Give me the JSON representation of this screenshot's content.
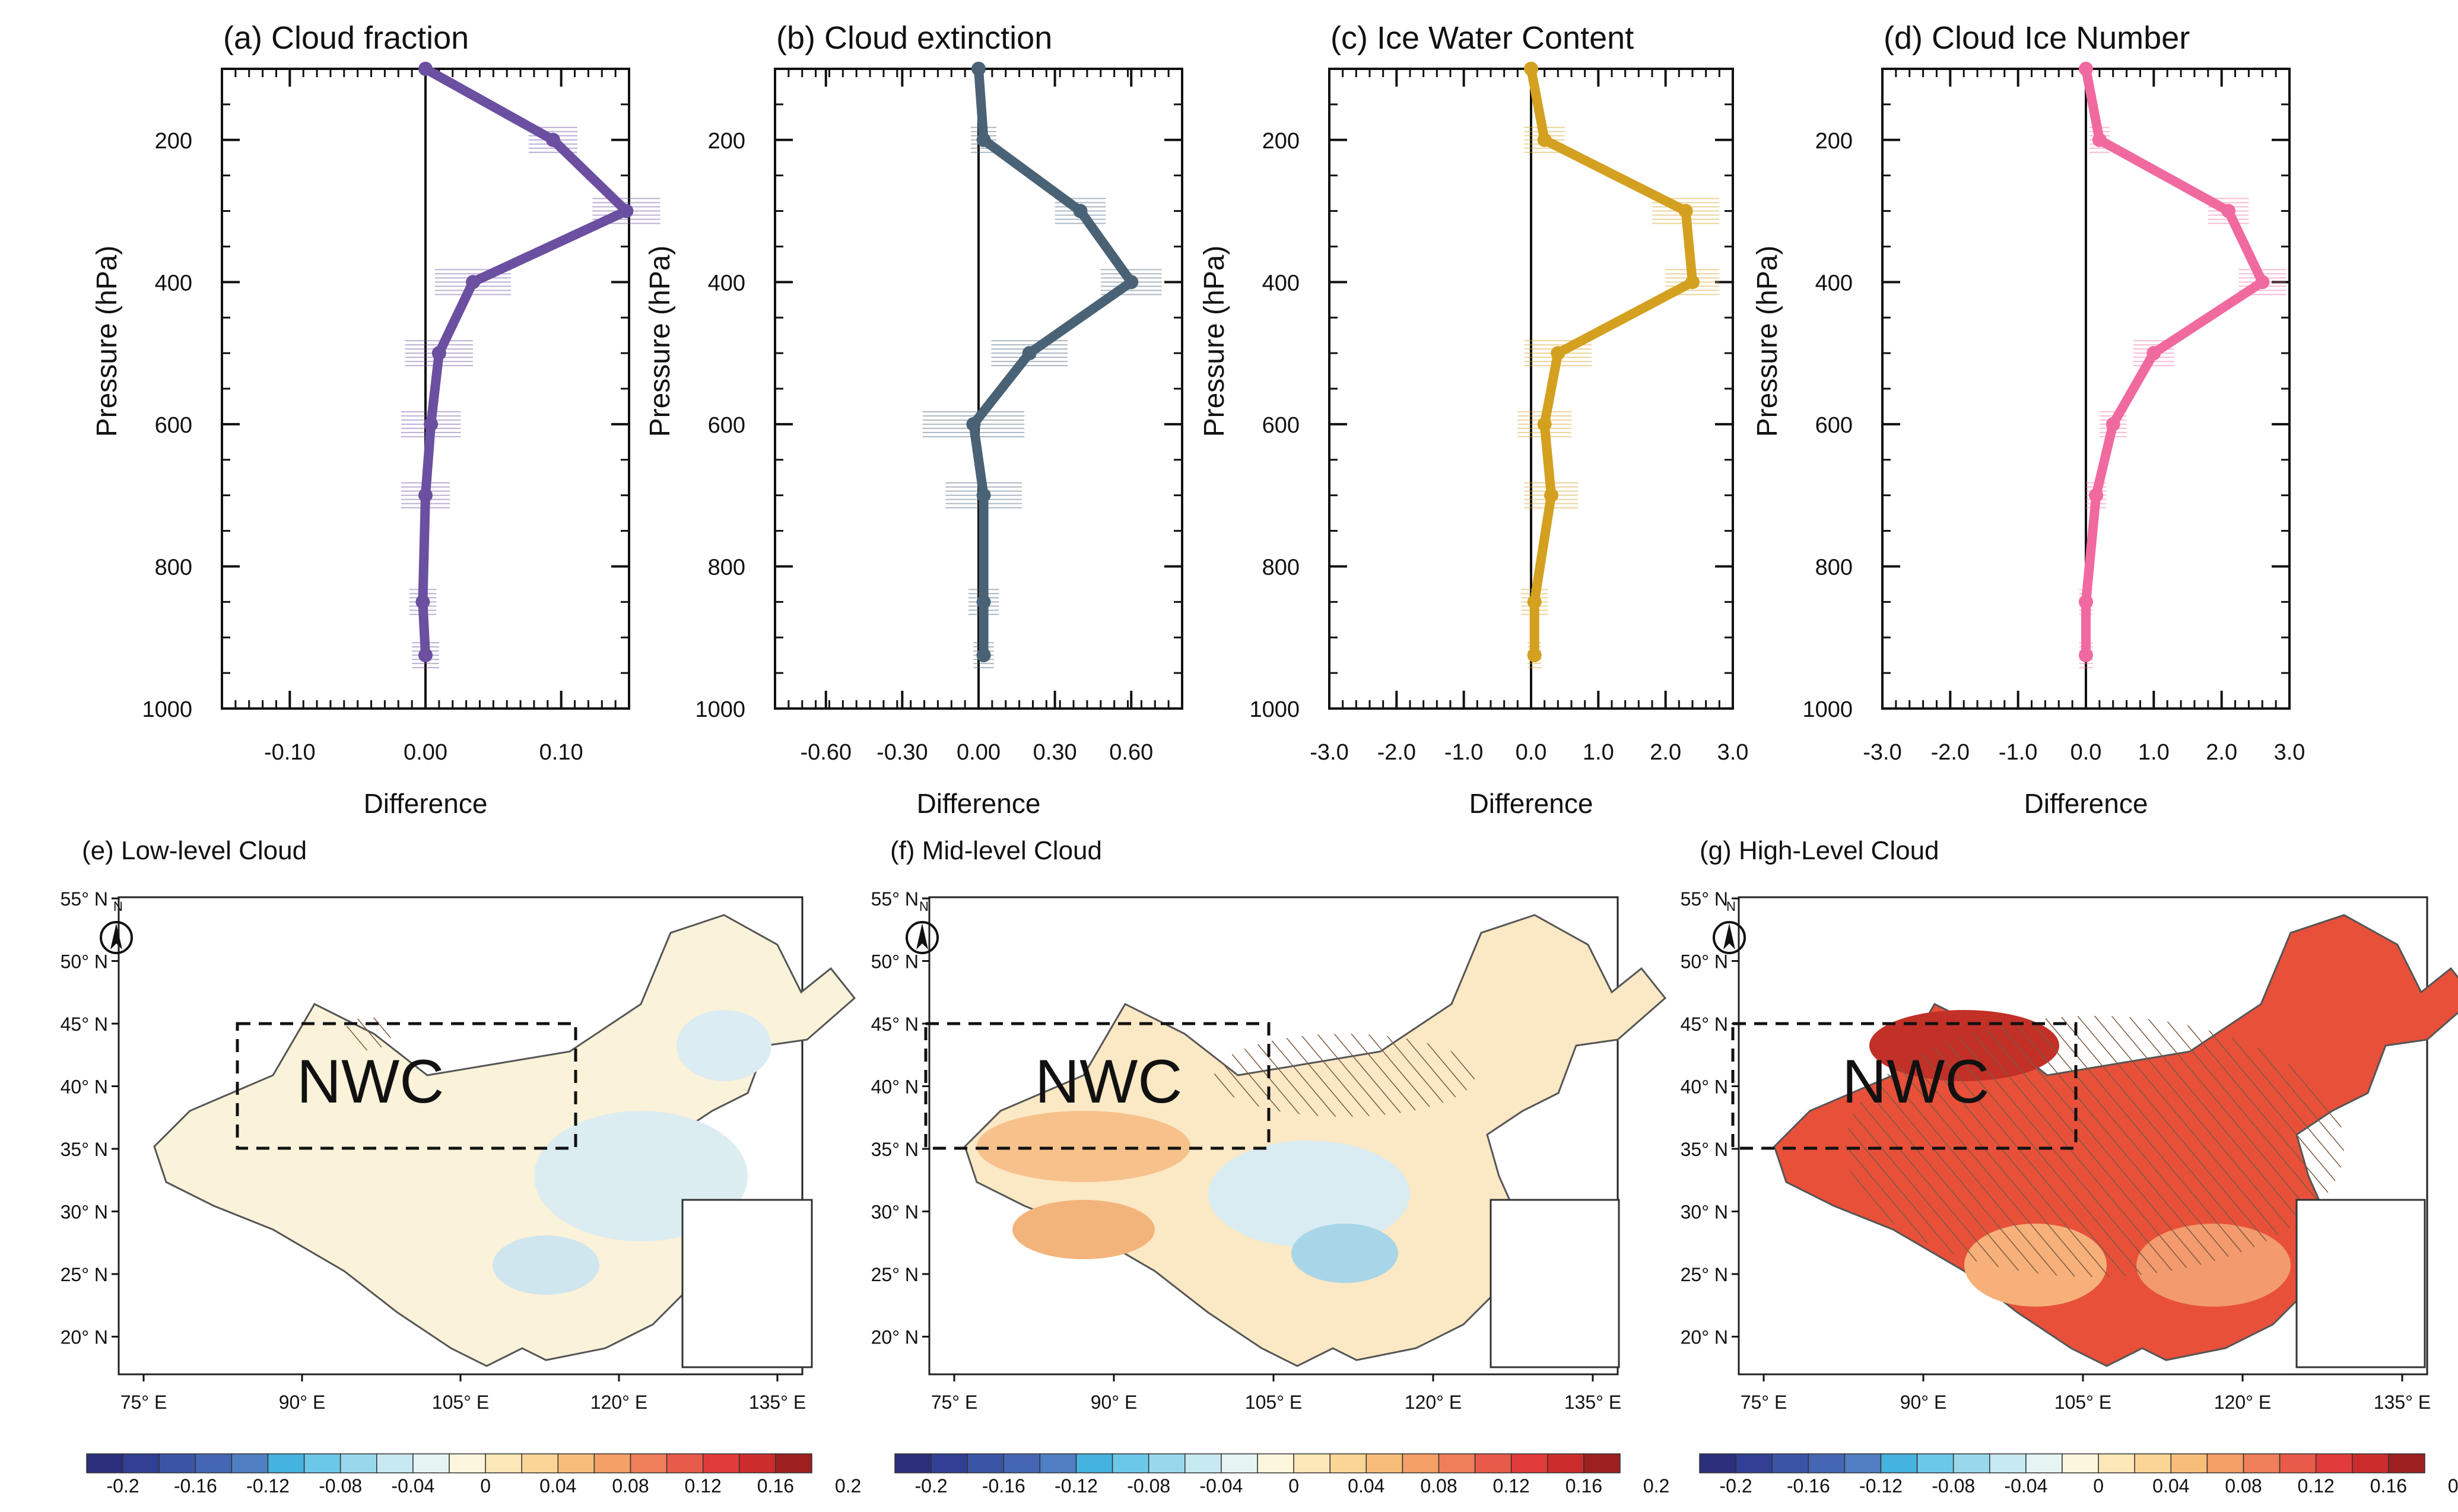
{
  "chart_data": [
    {
      "type": "line",
      "title": "(a) Cloud fraction",
      "xlabel": "Difference",
      "ylabel": "Pressure (hPa)",
      "xlim": [
        -0.15,
        0.15
      ],
      "ylim": [
        1000,
        100
      ],
      "xticks": [
        -0.1,
        0.0,
        0.1
      ],
      "xtick_labels": [
        "-0.10",
        "0.00",
        "0.10"
      ],
      "yticks": [
        200,
        400,
        600,
        800,
        1000
      ],
      "ytick_labels": [
        "200",
        "400",
        "600",
        "800",
        "1000"
      ],
      "color": "#6b4fa0",
      "pressure": [
        100,
        200,
        300,
        400,
        500,
        600,
        700,
        850,
        925
      ],
      "values": [
        0.0,
        0.094,
        0.148,
        0.035,
        0.01,
        0.004,
        0.0,
        -0.002,
        0.0
      ],
      "error": [
        0.0,
        0.018,
        0.025,
        0.028,
        0.025,
        0.022,
        0.018,
        0.01,
        0.01
      ]
    },
    {
      "type": "line",
      "title": "(b) Cloud extinction",
      "xlabel": "Difference",
      "ylabel": "Pressure (hPa)",
      "xlim": [
        -0.8,
        0.8
      ],
      "ylim": [
        1000,
        100
      ],
      "xticks": [
        -0.6,
        -0.3,
        0.0,
        0.3,
        0.6
      ],
      "xtick_labels": [
        "-0.60",
        "-0.30",
        "0.00",
        "0.30",
        "0.60"
      ],
      "yticks": [
        200,
        400,
        600,
        800,
        1000
      ],
      "ytick_labels": [
        "200",
        "400",
        "600",
        "800",
        "1000"
      ],
      "color": "#4a6275",
      "pressure": [
        100,
        200,
        300,
        400,
        500,
        600,
        700,
        850,
        925
      ],
      "values": [
        0.0,
        0.02,
        0.4,
        0.6,
        0.2,
        -0.02,
        0.02,
        0.02,
        0.02
      ],
      "error": [
        0.0,
        0.05,
        0.1,
        0.12,
        0.15,
        0.2,
        0.15,
        0.06,
        0.04
      ]
    },
    {
      "type": "line",
      "title": "(c) Ice Water Content",
      "xlabel": "Difference",
      "ylabel": "Pressure (hPa)",
      "xlim": [
        -3.0,
        3.0
      ],
      "ylim": [
        1000,
        100
      ],
      "xticks": [
        -3.0,
        -2.0,
        -1.0,
        0.0,
        1.0,
        2.0,
        3.0
      ],
      "xtick_labels": [
        "-3.0",
        "-2.0",
        "-1.0",
        "0.0",
        "1.0",
        "2.0",
        "3.0"
      ],
      "yticks": [
        200,
        400,
        600,
        800,
        1000
      ],
      "ytick_labels": [
        "200",
        "400",
        "600",
        "800",
        "1000"
      ],
      "color": "#d4a020",
      "pressure": [
        100,
        200,
        300,
        400,
        500,
        600,
        700,
        850,
        925
      ],
      "values": [
        0.0,
        0.2,
        2.3,
        2.4,
        0.4,
        0.2,
        0.3,
        0.05,
        0.05
      ],
      "error": [
        0.0,
        0.3,
        0.5,
        0.4,
        0.5,
        0.4,
        0.4,
        0.2,
        0.1
      ]
    },
    {
      "type": "line",
      "title": "(d) Cloud Ice Number",
      "xlabel": "Difference",
      "ylabel": "Pressure (hPa)",
      "xlim": [
        -3.0,
        3.0
      ],
      "ylim": [
        1000,
        100
      ],
      "xticks": [
        -3.0,
        -2.0,
        -1.0,
        0.0,
        1.0,
        2.0,
        3.0
      ],
      "xtick_labels": [
        "-3.0",
        "-2.0",
        "-1.0",
        "0.0",
        "1.0",
        "2.0",
        "3.0"
      ],
      "yticks": [
        200,
        400,
        600,
        800,
        1000
      ],
      "ytick_labels": [
        "200",
        "400",
        "600",
        "800",
        "1000"
      ],
      "color": "#f06aa0",
      "pressure": [
        100,
        200,
        300,
        400,
        500,
        600,
        700,
        850,
        925
      ],
      "values": [
        0.0,
        0.2,
        2.1,
        2.6,
        1.0,
        0.4,
        0.15,
        0.0,
        0.0
      ],
      "error": [
        0.0,
        0.15,
        0.3,
        0.35,
        0.3,
        0.2,
        0.15,
        0.1,
        0.1
      ]
    }
  ],
  "maps": [
    {
      "title": "(e) Low-level Cloud",
      "region_label": "NWC",
      "fill": "#fbf0d8",
      "north_label": "N"
    },
    {
      "title": "(f) Mid-level Cloud",
      "region_label": "NWC",
      "fill": "#fbe6c2",
      "north_label": "N"
    },
    {
      "title": "(g) High-Level Cloud",
      "region_label": "NWC",
      "fill": "#e8503a",
      "north_label": "N"
    }
  ],
  "map_axes": {
    "lat_labels": [
      "55° N",
      "50° N",
      "45° N",
      "40° N",
      "35° N",
      "30° N",
      "25° N",
      "20° N"
    ],
    "lon_labels": [
      "75° E",
      "90° E",
      "105° E",
      "120° E",
      "135° E"
    ]
  },
  "colorbar": {
    "colors": [
      "#2b2f7c",
      "#313f94",
      "#3a55a6",
      "#4466b4",
      "#4f7fc2",
      "#45b3e0",
      "#6cc8e8",
      "#99d8ec",
      "#c7e9f1",
      "#e6f4f4",
      "#fbf6dc",
      "#fce8b8",
      "#fbd595",
      "#f8bd78",
      "#f4a066",
      "#ef7e5a",
      "#e85a4a",
      "#e23b3c",
      "#cc2c2c",
      "#9e1f1f"
    ],
    "labels": [
      "-0.2",
      "-0.16",
      "-0.12",
      "-0.08",
      "-0.04",
      "0",
      "0.04",
      "0.08",
      "0.12",
      "0.16",
      "0.2"
    ]
  }
}
